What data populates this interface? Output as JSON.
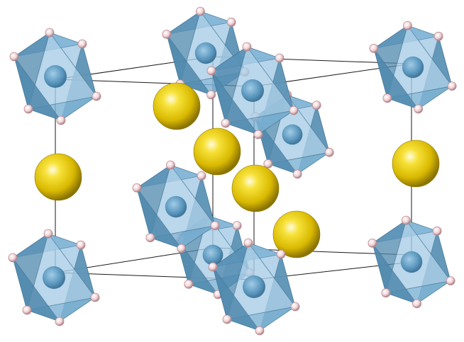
{
  "figure": {
    "background": "#ffffff",
    "line_color": "#1a1a1a"
  },
  "palette": {
    "octahedron_face": "#7fb3d5",
    "octahedron_dark": "#4f88ad",
    "octahedron_light": "#a9cde6",
    "central_atom": "#5b9cc4",
    "ligand_atom": "#f2d7d9",
    "ligand_stroke": "#b8898f",
    "cation_atom": "#e0c100",
    "cation_highlight": "#fff7b0",
    "cation_dark": "#8a7300"
  },
  "atom_types": [
    "octahedron",
    "cation",
    "ligand"
  ]
}
